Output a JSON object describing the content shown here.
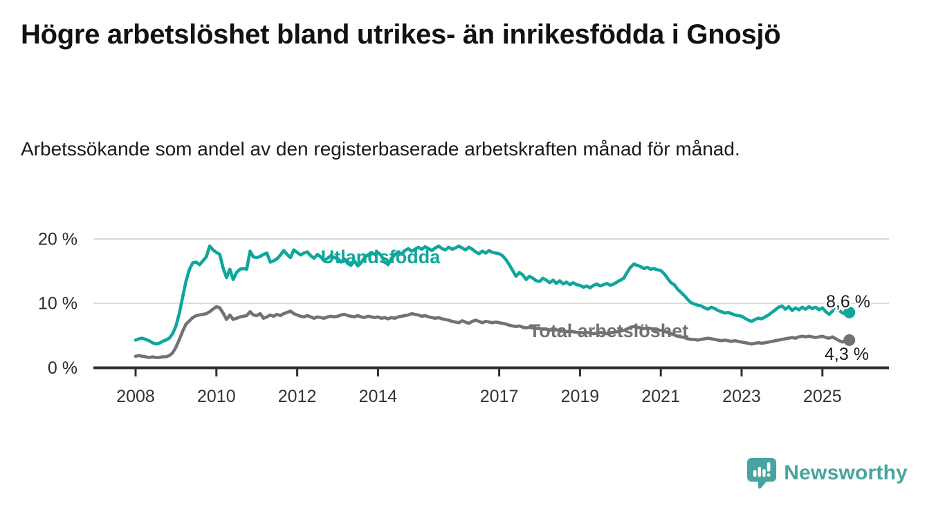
{
  "header": {
    "title": "Högre arbetslöshet bland utrikes- än inrikesfödda i Gnosjö",
    "subtitle": "Arbetssökande som andel av den registerbaserade arbetskraften månad för månad."
  },
  "colors": {
    "accent_teal": "#0fa69c",
    "neutral_gray": "#717275",
    "logo_teal": "#48a4a0",
    "axis": "#2f2f2f",
    "gridline": "#d9d9d9"
  },
  "chart_data": {
    "type": "line",
    "title": "Högre arbetslöshet bland utrikes- än inrikesfödda i Gnosjö",
    "subtitle": "Arbetssökande som andel av den registerbaserade arbetskraften månad för månad.",
    "x_unit": "month",
    "x_start": "2008-01",
    "x_end": "2025-09",
    "x_tick_labels": [
      "2008",
      "2010",
      "2012",
      "2014",
      "2017",
      "2019",
      "2021",
      "2023",
      "2025"
    ],
    "y_ticks": [
      {
        "value": 0,
        "label": "0 %"
      },
      {
        "value": 10,
        "label": "10 %"
      },
      {
        "value": 20,
        "label": "20 %"
      }
    ],
    "ylim": [
      0,
      21.5
    ],
    "grid": "horizontal",
    "legend": "inline-labels",
    "decimal_separator": ",",
    "series": [
      {
        "name": "Utlandsfödda",
        "color": "#0fa69c",
        "end_label": "8,6 %",
        "end_value": 8.6,
        "values": [
          4.3,
          4.5,
          4.6,
          4.4,
          4.2,
          3.9,
          3.7,
          3.8,
          4.1,
          4.3,
          4.6,
          5.3,
          6.5,
          8.5,
          11.0,
          13.5,
          15.3,
          16.3,
          16.4,
          16.0,
          16.6,
          17.2,
          18.9,
          18.3,
          17.9,
          17.6,
          15.5,
          14.0,
          15.3,
          13.7,
          14.8,
          15.3,
          15.4,
          15.3,
          18.1,
          17.2,
          17.1,
          17.3,
          17.6,
          17.8,
          16.4,
          16.6,
          16.9,
          17.5,
          18.2,
          17.6,
          17.1,
          18.3,
          17.9,
          17.5,
          17.8,
          18.0,
          17.4,
          17.0,
          17.6,
          17.2,
          16.6,
          17.0,
          17.4,
          17.1,
          17.0,
          16.4,
          16.9,
          16.2,
          15.9,
          16.6,
          15.8,
          16.3,
          17.1,
          17.5,
          17.9,
          17.6,
          17.9,
          17.4,
          16.4,
          16.0,
          17.0,
          17.5,
          18.0,
          17.6,
          18.2,
          18.5,
          18.1,
          18.4,
          18.7,
          18.4,
          18.8,
          18.5,
          18.2,
          18.6,
          18.9,
          18.5,
          18.3,
          18.7,
          18.4,
          18.6,
          18.9,
          18.6,
          18.3,
          18.7,
          18.4,
          18.0,
          17.7,
          18.1,
          17.8,
          18.2,
          17.9,
          17.8,
          17.7,
          17.4,
          16.8,
          16.0,
          15.1,
          14.2,
          14.8,
          14.4,
          13.7,
          14.2,
          13.9,
          13.5,
          13.4,
          13.9,
          13.6,
          13.2,
          13.6,
          13.1,
          13.5,
          13.0,
          13.3,
          12.9,
          13.2,
          12.9,
          12.8,
          12.5,
          12.7,
          12.4,
          12.8,
          13.0,
          12.7,
          12.9,
          13.1,
          12.8,
          13.0,
          13.3,
          13.6,
          13.9,
          14.8,
          15.6,
          16.1,
          15.9,
          15.7,
          15.4,
          15.6,
          15.3,
          15.4,
          15.2,
          15.1,
          14.6,
          13.9,
          13.2,
          12.9,
          12.2,
          11.7,
          11.2,
          10.6,
          10.1,
          9.9,
          9.7,
          9.6,
          9.3,
          9.1,
          9.4,
          9.2,
          8.9,
          8.7,
          8.5,
          8.6,
          8.4,
          8.2,
          8.1,
          8.0,
          7.7,
          7.4,
          7.2,
          7.5,
          7.7,
          7.6,
          7.9,
          8.2,
          8.6,
          9.0,
          9.4,
          9.6,
          9.1,
          9.5,
          8.9,
          9.3,
          9.0,
          9.4,
          9.1,
          9.5,
          9.2,
          9.4,
          9.0,
          9.3,
          8.7,
          8.3,
          8.8,
          9.1,
          8.9,
          8.5,
          8.4,
          8.6
        ]
      },
      {
        "name": "Total arbetslöshet",
        "color": "#717275",
        "end_label": "4,3 %",
        "end_value": 4.3,
        "values": [
          1.8,
          1.9,
          1.8,
          1.7,
          1.6,
          1.7,
          1.6,
          1.6,
          1.7,
          1.7,
          1.9,
          2.3,
          3.2,
          4.4,
          5.7,
          6.8,
          7.3,
          7.8,
          8.1,
          8.2,
          8.3,
          8.4,
          8.7,
          9.1,
          9.5,
          9.3,
          8.5,
          7.5,
          8.2,
          7.5,
          7.7,
          7.9,
          8.0,
          8.1,
          8.7,
          8.2,
          8.1,
          8.4,
          7.7,
          7.9,
          8.2,
          8.0,
          8.3,
          8.1,
          8.4,
          8.6,
          8.8,
          8.4,
          8.2,
          8.0,
          7.9,
          8.1,
          7.9,
          7.7,
          7.9,
          7.8,
          7.7,
          7.9,
          8.0,
          7.9,
          8.0,
          8.2,
          8.3,
          8.1,
          8.0,
          7.9,
          8.1,
          7.9,
          7.8,
          8.0,
          7.9,
          7.8,
          7.9,
          7.7,
          7.8,
          7.6,
          7.8,
          7.7,
          7.9,
          8.0,
          8.1,
          8.2,
          8.4,
          8.3,
          8.2,
          8.0,
          8.1,
          7.9,
          7.8,
          7.7,
          7.8,
          7.6,
          7.5,
          7.4,
          7.2,
          7.1,
          7.0,
          7.3,
          7.1,
          6.9,
          7.2,
          7.4,
          7.2,
          7.0,
          7.2,
          7.1,
          7.0,
          7.1,
          7.0,
          6.9,
          6.8,
          6.6,
          6.5,
          6.4,
          6.5,
          6.3,
          6.2,
          6.3,
          6.2,
          6.1,
          6.1,
          6.0,
          6.0,
          5.9,
          5.8,
          5.9,
          5.8,
          5.7,
          5.6,
          5.7,
          5.6,
          5.5,
          5.5,
          5.4,
          5.5,
          5.4,
          5.3,
          5.4,
          5.5,
          5.4,
          5.3,
          5.4,
          5.5,
          5.6,
          5.7,
          5.8,
          6.0,
          6.3,
          6.4,
          6.3,
          6.2,
          6.1,
          6.2,
          6.1,
          6.0,
          5.9,
          5.8,
          5.7,
          5.5,
          5.3,
          5.1,
          4.9,
          4.8,
          4.7,
          4.5,
          4.4,
          4.4,
          4.3,
          4.4,
          4.5,
          4.6,
          4.5,
          4.4,
          4.3,
          4.2,
          4.3,
          4.2,
          4.1,
          4.2,
          4.1,
          4.0,
          3.9,
          3.8,
          3.7,
          3.8,
          3.9,
          3.8,
          3.9,
          4.0,
          4.1,
          4.2,
          4.3,
          4.4,
          4.5,
          4.6,
          4.7,
          4.6,
          4.8,
          4.9,
          4.8,
          4.9,
          4.8,
          4.7,
          4.8,
          4.9,
          4.7,
          4.6,
          4.8,
          4.5,
          4.2,
          4.0,
          4.2,
          4.3
        ]
      }
    ]
  },
  "footer": {
    "brand": "Newsworthy",
    "logo_icon": "bar-chart-speech-bubble"
  }
}
